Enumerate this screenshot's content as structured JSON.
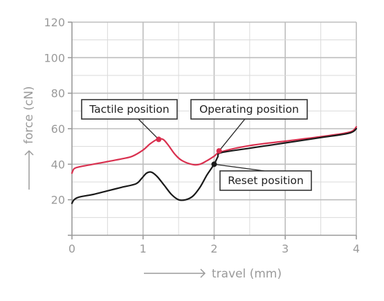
{
  "chart_data": {
    "type": "line",
    "xlabel": "travel (mm)",
    "ylabel": "force (cN)",
    "xlim": [
      0,
      4
    ],
    "ylim": [
      0,
      120
    ],
    "x_ticks": [
      "0",
      "1",
      "2",
      "3",
      "4"
    ],
    "y_ticks": [
      "20",
      "40",
      "60",
      "80",
      "100",
      "120"
    ],
    "grid": true,
    "series": [
      {
        "color": "#d9304f",
        "x": [
          0.0,
          0.03,
          0.1,
          0.3,
          0.5,
          0.7,
          0.85,
          1.0,
          1.1,
          1.2,
          1.28,
          1.35,
          1.45,
          1.55,
          1.7,
          1.8,
          1.9,
          2.0,
          2.1,
          2.5,
          3.0,
          3.5,
          3.9,
          4.0
        ],
        "y": [
          35,
          37.5,
          38.5,
          40,
          41.5,
          43,
          44.5,
          48,
          51.5,
          54,
          54,
          51,
          45.5,
          42,
          39.8,
          40,
          42,
          44.5,
          47,
          50.5,
          53,
          55.5,
          58,
          61
        ]
      },
      {
        "color": "#1a1a1a",
        "x": [
          0.0,
          0.03,
          0.1,
          0.3,
          0.5,
          0.7,
          0.9,
          0.98,
          1.05,
          1.12,
          1.2,
          1.3,
          1.4,
          1.5,
          1.6,
          1.7,
          1.8,
          1.9,
          2.0,
          2.05,
          2.1,
          2.5,
          3.0,
          3.5,
          3.9,
          4.0
        ],
        "y": [
          18,
          20,
          21.5,
          23,
          25,
          27,
          29,
          32,
          35,
          35.5,
          33,
          28,
          23,
          20,
          20,
          22,
          27,
          34,
          40,
          44,
          46.5,
          49,
          52,
          55,
          57.5,
          60
        ]
      }
    ],
    "points": [
      {
        "name": "Tactile position",
        "x": 1.22,
        "y": 54,
        "color": "#d9304f"
      },
      {
        "name": "Operating position",
        "x": 2.07,
        "y": 47.5,
        "color": "#d9304f"
      },
      {
        "name": "Reset position",
        "x": 2.0,
        "y": 40,
        "color": "#1a1a1a"
      }
    ],
    "annotations": [
      "Tactile position",
      "Operating position",
      "Reset position"
    ]
  }
}
